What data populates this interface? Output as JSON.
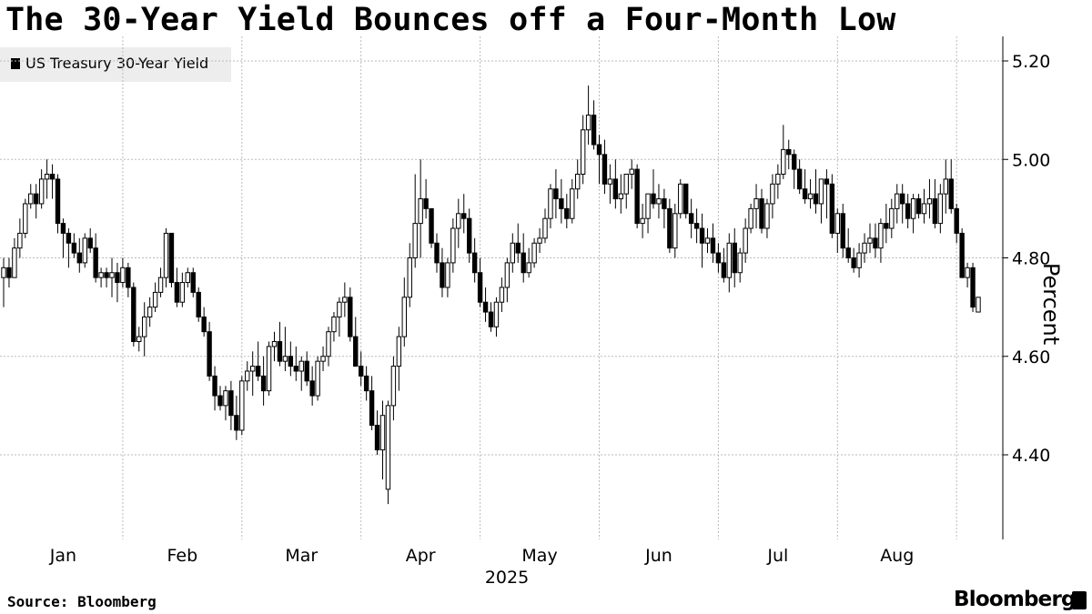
{
  "title": "The 30-Year Yield Bounces off a Four-Month Low",
  "legend_label": "US Treasury 30-Year Yield",
  "source": "Source: Bloomberg",
  "brand": "Bloomberg",
  "y_axis_label": "Percent",
  "year_label": "2025",
  "chart_data": {
    "type": "candlestick",
    "ylabel": "Percent",
    "ylim": [
      4.22,
      5.25
    ],
    "y_ticks": [
      "5.20",
      "5.00",
      "4.80",
      "4.60",
      "4.40"
    ],
    "y_tick_values": [
      5.2,
      5.0,
      4.8,
      4.6,
      4.4
    ],
    "x_ticks": [
      "Jan",
      "Feb",
      "Mar",
      "Apr",
      "May",
      "Jun",
      "Jul",
      "Aug"
    ],
    "x_tick_index": [
      11,
      33,
      55,
      77,
      99,
      121,
      143,
      165
    ],
    "x_year": "2025",
    "grid": true,
    "legend": "top-left",
    "colors": {
      "up": "#ffffff",
      "down": "#000000",
      "grid": "#bbbbbb"
    },
    "series": [
      {
        "name": "US Treasury 30-Year Yield",
        "values": [
          [
            4.76,
            4.8,
            4.7,
            4.78
          ],
          [
            4.78,
            4.8,
            4.74,
            4.76
          ],
          [
            4.76,
            4.84,
            4.76,
            4.82
          ],
          [
            4.82,
            4.88,
            4.8,
            4.85
          ],
          [
            4.85,
            4.92,
            4.84,
            4.91
          ],
          [
            4.91,
            4.95,
            4.9,
            4.93
          ],
          [
            4.93,
            4.95,
            4.88,
            4.91
          ],
          [
            4.91,
            4.98,
            4.9,
            4.96
          ],
          [
            4.96,
            5.0,
            4.92,
            4.97
          ],
          [
            4.97,
            4.99,
            4.92,
            4.96
          ],
          [
            4.96,
            4.97,
            4.85,
            4.87
          ],
          [
            4.87,
            4.88,
            4.8,
            4.85
          ],
          [
            4.85,
            4.86,
            4.78,
            4.83
          ],
          [
            4.83,
            4.85,
            4.8,
            4.81
          ],
          [
            4.81,
            4.84,
            4.77,
            4.79
          ],
          [
            4.79,
            4.85,
            4.78,
            4.84
          ],
          [
            4.84,
            4.86,
            4.81,
            4.82
          ],
          [
            4.82,
            4.85,
            4.75,
            4.76
          ],
          [
            4.76,
            4.78,
            4.74,
            4.77
          ],
          [
            4.77,
            4.78,
            4.74,
            4.76
          ],
          [
            4.76,
            4.8,
            4.72,
            4.77
          ],
          [
            4.77,
            4.79,
            4.71,
            4.75
          ],
          [
            4.75,
            4.8,
            4.74,
            4.78
          ],
          [
            4.78,
            4.79,
            4.72,
            4.74
          ],
          [
            4.74,
            4.75,
            4.62,
            4.63
          ],
          [
            4.63,
            4.66,
            4.61,
            4.64
          ],
          [
            4.64,
            4.71,
            4.6,
            4.68
          ],
          [
            4.68,
            4.72,
            4.66,
            4.7
          ],
          [
            4.7,
            4.75,
            4.69,
            4.73
          ],
          [
            4.73,
            4.78,
            4.72,
            4.76
          ],
          [
            4.76,
            4.86,
            4.74,
            4.85
          ],
          [
            4.85,
            4.85,
            4.74,
            4.75
          ],
          [
            4.75,
            4.78,
            4.7,
            4.71
          ],
          [
            4.71,
            4.77,
            4.7,
            4.75
          ],
          [
            4.75,
            4.78,
            4.74,
            4.77
          ],
          [
            4.77,
            4.78,
            4.72,
            4.73
          ],
          [
            4.73,
            4.74,
            4.67,
            4.68
          ],
          [
            4.68,
            4.7,
            4.64,
            4.65
          ],
          [
            4.65,
            4.67,
            4.55,
            4.56
          ],
          [
            4.56,
            4.58,
            4.49,
            4.52
          ],
          [
            4.52,
            4.54,
            4.49,
            4.5
          ],
          [
            4.5,
            4.54,
            4.47,
            4.53
          ],
          [
            4.53,
            4.55,
            4.45,
            4.48
          ],
          [
            4.48,
            4.52,
            4.43,
            4.45
          ],
          [
            4.45,
            4.56,
            4.44,
            4.55
          ],
          [
            4.55,
            4.59,
            4.53,
            4.57
          ],
          [
            4.57,
            4.61,
            4.52,
            4.58
          ],
          [
            4.58,
            4.63,
            4.55,
            4.56
          ],
          [
            4.56,
            4.6,
            4.5,
            4.53
          ],
          [
            4.53,
            4.63,
            4.52,
            4.62
          ],
          [
            4.62,
            4.65,
            4.59,
            4.63
          ],
          [
            4.63,
            4.67,
            4.58,
            4.59
          ],
          [
            4.59,
            4.66,
            4.57,
            4.6
          ],
          [
            4.6,
            4.63,
            4.56,
            4.58
          ],
          [
            4.58,
            4.62,
            4.55,
            4.57
          ],
          [
            4.57,
            4.6,
            4.53,
            4.59
          ],
          [
            4.59,
            4.61,
            4.54,
            4.55
          ],
          [
            4.55,
            4.58,
            4.5,
            4.52
          ],
          [
            4.52,
            4.6,
            4.51,
            4.59
          ],
          [
            4.59,
            4.62,
            4.57,
            4.6
          ],
          [
            4.6,
            4.66,
            4.58,
            4.65
          ],
          [
            4.65,
            4.69,
            4.63,
            4.68
          ],
          [
            4.68,
            4.72,
            4.64,
            4.71
          ],
          [
            4.71,
            4.75,
            4.68,
            4.72
          ],
          [
            4.72,
            4.74,
            4.63,
            4.64
          ],
          [
            4.64,
            4.68,
            4.59,
            4.58
          ],
          [
            4.58,
            4.61,
            4.54,
            4.56
          ],
          [
            4.56,
            4.58,
            4.51,
            4.53
          ],
          [
            4.53,
            4.56,
            4.45,
            4.46
          ],
          [
            4.46,
            4.49,
            4.4,
            4.41
          ],
          [
            4.41,
            4.51,
            4.35,
            4.48
          ],
          [
            4.33,
            4.51,
            4.3,
            4.5
          ],
          [
            4.5,
            4.6,
            4.47,
            4.58
          ],
          [
            4.58,
            4.66,
            4.53,
            4.64
          ],
          [
            4.64,
            4.76,
            4.62,
            4.72
          ],
          [
            4.72,
            4.83,
            4.7,
            4.8
          ],
          [
            4.8,
            4.97,
            4.78,
            4.87
          ],
          [
            4.87,
            5.0,
            4.8,
            4.92
          ],
          [
            4.92,
            4.96,
            4.88,
            4.9
          ],
          [
            4.9,
            4.9,
            4.82,
            4.83
          ],
          [
            4.83,
            4.85,
            4.77,
            4.79
          ],
          [
            4.79,
            4.82,
            4.72,
            4.74
          ],
          [
            4.74,
            4.8,
            4.72,
            4.79
          ],
          [
            4.79,
            4.88,
            4.77,
            4.86
          ],
          [
            4.86,
            4.92,
            4.82,
            4.89
          ],
          [
            4.89,
            4.93,
            4.85,
            4.88
          ],
          [
            4.88,
            4.9,
            4.79,
            4.81
          ],
          [
            4.81,
            4.84,
            4.75,
            4.77
          ],
          [
            4.77,
            4.8,
            4.7,
            4.71
          ],
          [
            4.71,
            4.74,
            4.67,
            4.69
          ],
          [
            4.69,
            4.71,
            4.65,
            4.66
          ],
          [
            4.66,
            4.72,
            4.64,
            4.71
          ],
          [
            4.71,
            4.76,
            4.69,
            4.74
          ],
          [
            4.74,
            4.8,
            4.71,
            4.79
          ],
          [
            4.79,
            4.85,
            4.77,
            4.83
          ],
          [
            4.83,
            4.87,
            4.79,
            4.81
          ],
          [
            4.81,
            4.85,
            4.75,
            4.77
          ],
          [
            4.77,
            4.82,
            4.76,
            4.79
          ],
          [
            4.79,
            4.84,
            4.78,
            4.83
          ],
          [
            4.83,
            4.86,
            4.81,
            4.84
          ],
          [
            4.84,
            4.9,
            4.83,
            4.88
          ],
          [
            4.88,
            4.95,
            4.86,
            4.94
          ],
          [
            4.94,
            4.98,
            4.88,
            4.92
          ],
          [
            4.92,
            4.96,
            4.87,
            4.9
          ],
          [
            4.9,
            4.93,
            4.86,
            4.88
          ],
          [
            4.88,
            4.96,
            4.87,
            4.94
          ],
          [
            4.94,
            5.0,
            4.92,
            4.97
          ],
          [
            4.97,
            5.09,
            4.95,
            5.06
          ],
          [
            5.06,
            5.15,
            5.03,
            5.09
          ],
          [
            5.09,
            5.12,
            5.02,
            5.03
          ],
          [
            5.03,
            5.05,
            4.95,
            5.01
          ],
          [
            5.01,
            5.04,
            4.93,
            4.95
          ],
          [
            4.95,
            4.99,
            4.91,
            4.96
          ],
          [
            4.96,
            5.0,
            4.9,
            4.92
          ],
          [
            4.92,
            4.97,
            4.89,
            4.93
          ],
          [
            4.93,
            4.97,
            4.9,
            4.97
          ],
          [
            4.97,
            5.0,
            4.94,
            4.98
          ],
          [
            4.98,
            4.99,
            4.86,
            4.87
          ],
          [
            4.87,
            4.91,
            4.84,
            4.88
          ],
          [
            4.88,
            4.93,
            4.85,
            4.93
          ],
          [
            4.93,
            4.98,
            4.9,
            4.91
          ],
          [
            4.91,
            4.95,
            4.88,
            4.92
          ],
          [
            4.92,
            4.94,
            4.86,
            4.9
          ],
          [
            4.9,
            4.92,
            4.81,
            4.82
          ],
          [
            4.82,
            4.91,
            4.8,
            4.89
          ],
          [
            4.89,
            4.96,
            4.88,
            4.95
          ],
          [
            4.95,
            4.95,
            4.88,
            4.89
          ],
          [
            4.89,
            4.92,
            4.84,
            4.87
          ],
          [
            4.87,
            4.9,
            4.83,
            4.86
          ],
          [
            4.86,
            4.89,
            4.78,
            4.83
          ],
          [
            4.83,
            4.86,
            4.81,
            4.84
          ],
          [
            4.84,
            4.87,
            4.79,
            4.81
          ],
          [
            4.81,
            4.83,
            4.77,
            4.79
          ],
          [
            4.79,
            4.82,
            4.75,
            4.76
          ],
          [
            4.76,
            4.85,
            4.73,
            4.83
          ],
          [
            4.83,
            4.86,
            4.74,
            4.77
          ],
          [
            4.77,
            4.82,
            4.75,
            4.81
          ],
          [
            4.81,
            4.88,
            4.79,
            4.86
          ],
          [
            4.86,
            4.91,
            4.85,
            4.9
          ],
          [
            4.9,
            4.95,
            4.86,
            4.92
          ],
          [
            4.92,
            4.94,
            4.85,
            4.86
          ],
          [
            4.86,
            4.92,
            4.84,
            4.91
          ],
          [
            4.91,
            4.97,
            4.88,
            4.95
          ],
          [
            4.95,
            4.99,
            4.92,
            4.97
          ],
          [
            4.97,
            5.07,
            4.96,
            5.02
          ],
          [
            5.02,
            5.04,
            4.98,
            5.01
          ],
          [
            5.01,
            5.02,
            4.94,
            4.98
          ],
          [
            4.98,
            5.0,
            4.93,
            4.94
          ],
          [
            4.94,
            4.98,
            4.91,
            4.92
          ],
          [
            4.92,
            4.96,
            4.9,
            4.93
          ],
          [
            4.93,
            4.98,
            4.89,
            4.91
          ],
          [
            4.91,
            4.95,
            4.87,
            4.96
          ],
          [
            4.96,
            4.98,
            4.88,
            4.95
          ],
          [
            4.95,
            4.97,
            4.84,
            4.85
          ],
          [
            4.85,
            4.9,
            4.81,
            4.89
          ],
          [
            4.89,
            4.91,
            4.8,
            4.82
          ],
          [
            4.82,
            4.86,
            4.79,
            4.8
          ],
          [
            4.8,
            4.82,
            4.77,
            4.78
          ],
          [
            4.78,
            4.83,
            4.76,
            4.81
          ],
          [
            4.81,
            4.85,
            4.79,
            4.83
          ],
          [
            4.83,
            4.87,
            4.81,
            4.84
          ],
          [
            4.84,
            4.87,
            4.8,
            4.82
          ],
          [
            4.82,
            4.88,
            4.79,
            4.87
          ],
          [
            4.87,
            4.91,
            4.83,
            4.86
          ],
          [
            4.86,
            4.92,
            4.84,
            4.9
          ],
          [
            4.9,
            4.95,
            4.87,
            4.93
          ],
          [
            4.93,
            4.95,
            4.87,
            4.91
          ],
          [
            4.91,
            4.93,
            4.86,
            4.88
          ],
          [
            4.88,
            4.93,
            4.85,
            4.92
          ],
          [
            4.92,
            4.93,
            4.88,
            4.89
          ],
          [
            4.89,
            4.94,
            4.87,
            4.91
          ],
          [
            4.91,
            4.96,
            4.88,
            4.92
          ],
          [
            4.92,
            4.96,
            4.86,
            4.87
          ],
          [
            4.87,
            4.95,
            4.85,
            4.93
          ],
          [
            4.93,
            5.0,
            4.89,
            4.96
          ],
          [
            4.96,
            5.0,
            4.89,
            4.9
          ],
          [
            4.9,
            4.91,
            4.83,
            4.85
          ],
          [
            4.85,
            4.86,
            4.76,
            4.76
          ],
          [
            4.76,
            4.79,
            4.74,
            4.78
          ],
          [
            4.78,
            4.79,
            4.69,
            4.7
          ],
          [
            4.69,
            4.72,
            4.69,
            4.72
          ]
        ]
      }
    ]
  }
}
